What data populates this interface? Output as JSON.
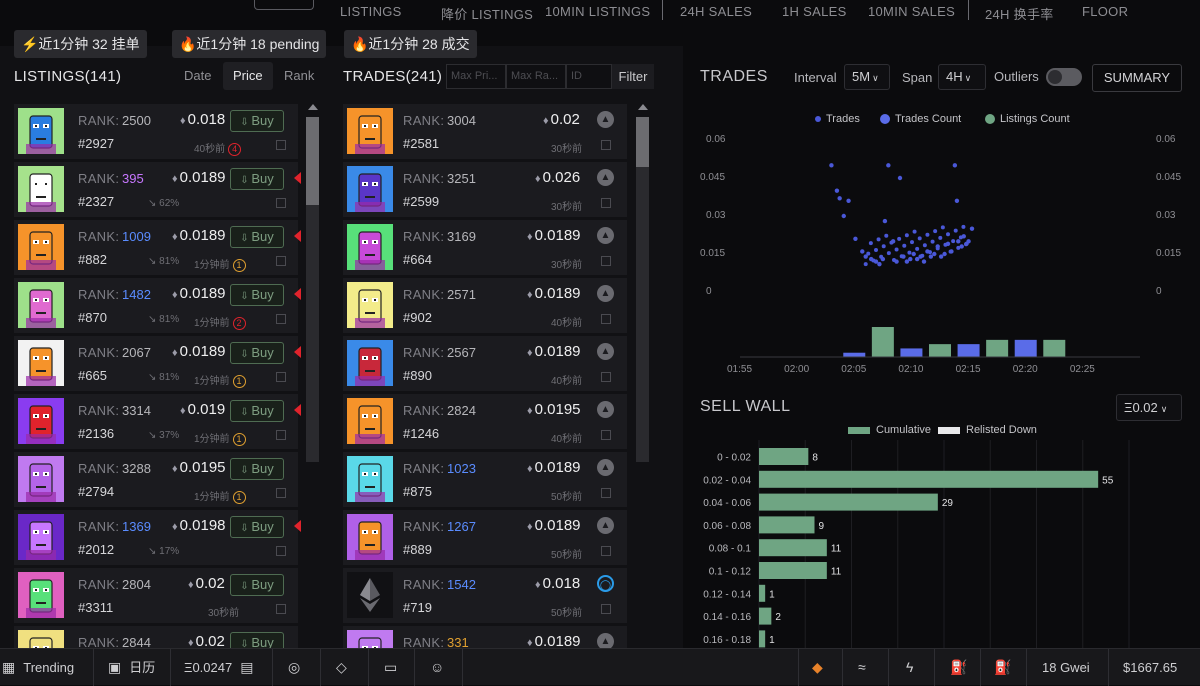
{
  "topnav": {
    "items": [
      "LISTINGS",
      "降价 LISTINGS",
      "10MIN LISTINGS",
      "24H SALES",
      "1H SALES",
      "10MIN SALES",
      "24H 换手率",
      "FLOOR"
    ]
  },
  "badges": [
    {
      "icon": "lightning-icon",
      "text": "⚡近1分钟 32 挂单"
    },
    {
      "icon": "fire-icon",
      "text": "🔥近1分钟 18 pending"
    },
    {
      "icon": "fire-icon",
      "text": "🔥近1分钟 28 成交"
    }
  ],
  "listings": {
    "title": "LISTINGS(141)",
    "sort": [
      "Date",
      "Price",
      "Rank"
    ],
    "sort_active": "Price",
    "buy_label": "Buy",
    "rank_label": "RANK:",
    "rows": [
      {
        "rank": "2500",
        "rank_color": "#b6b6ba",
        "price": "0.018",
        "id": "#2927",
        "meta": "40秒前",
        "ring": "4",
        "ring_color": "#e0232c",
        "trend": "",
        "bg": "#9ee08a",
        "face": "#2a7de0",
        "flag": false
      },
      {
        "rank": "395",
        "rank_color": "#c777ff",
        "price": "0.0189",
        "id": "#2327",
        "meta": "",
        "ring": "",
        "ring_color": "",
        "trend": "62%",
        "bg": "#a6e28c",
        "face": "#ffffff",
        "flag": true
      },
      {
        "rank": "1009",
        "rank_color": "#5a8cff",
        "price": "0.0189",
        "id": "#882",
        "meta": "1分钟前",
        "ring": "1",
        "ring_color": "#e0a030",
        "trend": "81%",
        "bg": "#f6932a",
        "face": "#f6932a",
        "flag": true
      },
      {
        "rank": "1482",
        "rank_color": "#5a8cff",
        "price": "0.0189",
        "id": "#870",
        "meta": "1分钟前",
        "ring": "2",
        "ring_color": "#e0232c",
        "trend": "81%",
        "bg": "#9ee08a",
        "face": "#e06ad0",
        "flag": true
      },
      {
        "rank": "2067",
        "rank_color": "#b6b6ba",
        "price": "0.0189",
        "id": "#665",
        "meta": "1分钟前",
        "ring": "1",
        "ring_color": "#e0a030",
        "trend": "81%",
        "bg": "#f2f2f2",
        "face": "#f6932a",
        "flag": true
      },
      {
        "rank": "3314",
        "rank_color": "#b6b6ba",
        "price": "0.019",
        "id": "#2136",
        "meta": "1分钟前",
        "ring": "1",
        "ring_color": "#e0a030",
        "trend": "37%",
        "bg": "#8a3cf0",
        "face": "#e0232c",
        "flag": true
      },
      {
        "rank": "3288",
        "rank_color": "#b6b6ba",
        "price": "0.0195",
        "id": "#2794",
        "meta": "1分钟前",
        "ring": "1",
        "ring_color": "#e0a030",
        "trend": "",
        "bg": "#c07af0",
        "face": "#b464e8",
        "flag": false
      },
      {
        "rank": "1369",
        "rank_color": "#5a8cff",
        "price": "0.0198",
        "id": "#2012",
        "meta": "",
        "ring": "",
        "ring_color": "",
        "trend": "17%",
        "bg": "#6a28c8",
        "face": "#c777ff",
        "flag": true
      },
      {
        "rank": "2804",
        "rank_color": "#b6b6ba",
        "price": "0.02",
        "id": "#3311",
        "meta": "30秒前",
        "ring": "",
        "ring_color": "",
        "trend": "",
        "bg": "#e060c0",
        "face": "#58e07a",
        "flag": false
      },
      {
        "rank": "2844",
        "rank_color": "#b6b6ba",
        "price": "0.02",
        "id": "",
        "meta": "",
        "ring": "",
        "ring_color": "",
        "trend": "",
        "bg": "#f0e080",
        "face": "#f0e080",
        "flag": false
      }
    ]
  },
  "trades": {
    "title": "TRADES(241)",
    "placeholders": [
      "Max Pri...",
      "Max Ra...",
      "ID"
    ],
    "filter_label": "Filter",
    "rank_label": "RANK:",
    "rows": [
      {
        "rank": "3004",
        "rank_color": "#b6b6ba",
        "price": "0.02",
        "id": "#2581",
        "meta": "30秒前",
        "bg": "#f6932a",
        "face": "#f6932a",
        "eth": false
      },
      {
        "rank": "3251",
        "rank_color": "#b6b6ba",
        "price": "0.026",
        "id": "#2599",
        "meta": "30秒前",
        "bg": "#3a8ae8",
        "face": "#5a36c8",
        "eth": false
      },
      {
        "rank": "3169",
        "rank_color": "#b6b6ba",
        "price": "0.0189",
        "id": "#664",
        "meta": "30秒前",
        "bg": "#58e07a",
        "face": "#c84ad8",
        "eth": false
      },
      {
        "rank": "2571",
        "rank_color": "#b6b6ba",
        "price": "0.0189",
        "id": "#902",
        "meta": "40秒前",
        "bg": "#f3ec8a",
        "face": "#f3ec8a",
        "eth": false
      },
      {
        "rank": "2567",
        "rank_color": "#b6b6ba",
        "price": "0.0189",
        "id": "#890",
        "meta": "40秒前",
        "bg": "#3a8ae8",
        "face": "#c8283a",
        "eth": false
      },
      {
        "rank": "2824",
        "rank_color": "#b6b6ba",
        "price": "0.0195",
        "id": "#1246",
        "meta": "40秒前",
        "bg": "#f6932a",
        "face": "#f6932a",
        "eth": false
      },
      {
        "rank": "1023",
        "rank_color": "#5a8cff",
        "price": "0.0189",
        "id": "#875",
        "meta": "50秒前",
        "bg": "#5ad8e8",
        "face": "#5ad8e8",
        "eth": false
      },
      {
        "rank": "1267",
        "rank_color": "#5a8cff",
        "price": "0.0189",
        "id": "#889",
        "meta": "50秒前",
        "bg": "#b060e8",
        "face": "#f6932a",
        "eth": false
      },
      {
        "rank": "1542",
        "rank_color": "#5a8cff",
        "price": "0.018",
        "id": "#719",
        "meta": "50秒前",
        "bg": "#111114",
        "face": "#111114",
        "eth": true
      },
      {
        "rank": "331",
        "rank_color": "#e0a030",
        "price": "0.0189",
        "id": "",
        "meta": "",
        "bg": "#c07af0",
        "face": "#c07af0",
        "eth": false
      }
    ]
  },
  "chart_panel": {
    "title": "TRADES",
    "interval_label": "Interval",
    "interval_value": "5M",
    "span_label": "Span",
    "span_value": "4H",
    "outliers_label": "Outliers",
    "summary_label": "SUMMARY",
    "legend": [
      {
        "name": "Trades",
        "color": "#4a58d8"
      },
      {
        "name": "Trades Count",
        "color": "#5a6ce8"
      },
      {
        "name": "Listings Count",
        "color": "#6fa583"
      }
    ]
  },
  "sell_wall": {
    "title": "SELL WALL",
    "select_value": "Ξ0.02",
    "legend": [
      {
        "name": "Cumulative",
        "color": "#6fa583"
      },
      {
        "name": "Relisted Down",
        "color": "#e8e8ea"
      }
    ]
  },
  "chart_data": [
    {
      "type": "scatter",
      "title": "",
      "ylim": [
        0,
        0.06
      ],
      "y_ticks": [
        "0.06",
        "0.045",
        "0.03",
        "0.015",
        "0"
      ],
      "x_ticks": [
        "01:55",
        "02:00",
        "02:05",
        "02:10",
        "02:15",
        "02:20",
        "02:25"
      ],
      "series": [
        {
          "name": "Trades",
          "points": [
            [
              2.05,
              0.05
            ],
            [
              2.058,
              0.04
            ],
            [
              2.062,
              0.037
            ],
            [
              2.068,
              0.03
            ],
            [
              2.075,
              0.036
            ],
            [
              2.085,
              0.021
            ],
            [
              2.095,
              0.016
            ],
            [
              2.1,
              0.014
            ],
            [
              2.108,
              0.013
            ],
            [
              2.115,
              0.012
            ],
            [
              2.12,
              0.011
            ],
            [
              2.125,
              0.013
            ],
            [
              2.128,
              0.028
            ],
            [
              2.133,
              0.05
            ],
            [
              2.14,
              0.02
            ],
            [
              2.145,
              0.012
            ],
            [
              2.15,
              0.045
            ],
            [
              2.155,
              0.014
            ],
            [
              2.16,
              0.012
            ],
            [
              2.165,
              0.013
            ],
            [
              2.17,
              0.015
            ],
            [
              2.175,
              0.013
            ],
            [
              2.18,
              0.014
            ],
            [
              2.185,
              0.012
            ],
            [
              2.19,
              0.016
            ],
            [
              2.195,
              0.014
            ],
            [
              2.2,
              0.015
            ],
            [
              2.205,
              0.018
            ],
            [
              2.21,
              0.014
            ],
            [
              2.215,
              0.015
            ],
            [
              2.22,
              0.019
            ],
            [
              2.225,
              0.016
            ],
            [
              2.23,
              0.05
            ],
            [
              2.233,
              0.036
            ],
            [
              2.235,
              0.02
            ],
            [
              2.24,
              0.018
            ],
            [
              2.243,
              0.022
            ],
            [
              2.247,
              0.019
            ],
            [
              2.25,
              0.02
            ],
            [
              2.255,
              0.025
            ]
          ]
        }
      ]
    },
    {
      "type": "bar",
      "title": "",
      "categories": [
        "02:05",
        "02:07.5",
        "02:10",
        "02:12.5",
        "02:15",
        "02:17.5",
        "02:20",
        "02:22.5",
        "02:25"
      ],
      "series": [
        {
          "name": "Trades Count",
          "values": [
            1,
            0,
            2,
            0,
            3,
            0,
            4,
            0,
            0
          ]
        },
        {
          "name": "Listings Count",
          "values": [
            0,
            7,
            0,
            3,
            0,
            4,
            0,
            4,
            0
          ]
        }
      ]
    },
    {
      "type": "bar",
      "orientation": "horizontal",
      "title": "",
      "categories": [
        "0 - 0.02",
        "0.02 - 0.04",
        "0.04 - 0.06",
        "0.06 - 0.08",
        "0.08 - 0.1",
        "0.1 - 0.12",
        "0.12 - 0.14",
        "0.14 - 0.16",
        "0.16 - 0.18"
      ],
      "series": [
        {
          "name": "Cumulative",
          "values": [
            8,
            55,
            29,
            9,
            11,
            11,
            1,
            2,
            1
          ]
        }
      ],
      "xlim": [
        0,
        60
      ]
    }
  ],
  "bottombar": {
    "trending": "Trending",
    "calendar": "日历",
    "floor_price": "Ξ0.0247",
    "gas": "18 Gwei",
    "eth_price": "$1667.65",
    "icons": [
      "grid-icon",
      "calendar-icon",
      "calculator-icon",
      "opensea-icon",
      "diamond-icon",
      "wallet-icon",
      "discord-icon",
      "metamask-icon",
      "turtle-icon",
      "lightning-icon",
      "gas-pump-icon",
      "gas-pump-fast-icon"
    ]
  }
}
